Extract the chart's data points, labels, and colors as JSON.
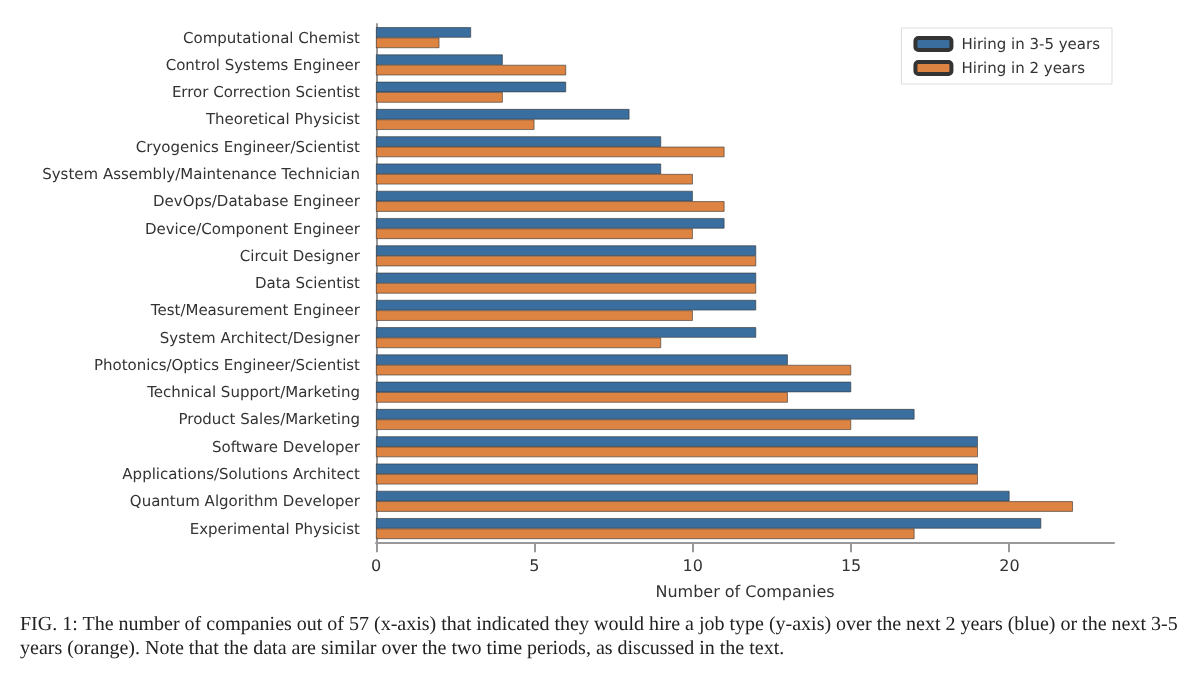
{
  "chart_data": {
    "type": "bar",
    "orientation": "horizontal",
    "xlabel": "Number of Companies",
    "categories": [
      "Computational Chemist",
      "Control Systems Engineer",
      "Error Correction Scientist",
      "Theoretical Physicist",
      "Cryogenics Engineer/Scientist",
      "System Assembly/Maintenance Technician",
      "DevOps/Database Engineer",
      "Device/Component Engineer",
      "Circuit Designer",
      "Data Scientist",
      "Test/Measurement Engineer",
      "System Architect/Designer",
      "Photonics/Optics Engineer/Scientist",
      "Technical Support/Marketing",
      "Product Sales/Marketing",
      "Software Developer",
      "Applications/Solutions Architect",
      "Quantum Algorithm Developer",
      "Experimental Physicist"
    ],
    "series": [
      {
        "name": "Hiring in 3-5 years",
        "color": "#3a6e9e",
        "values": [
          3,
          4,
          6,
          8,
          9,
          9,
          10,
          11,
          12,
          12,
          12,
          12,
          13,
          15,
          17,
          19,
          19,
          20,
          21
        ]
      },
      {
        "name": "Hiring in 2 years",
        "color": "#dd8443",
        "values": [
          2,
          6,
          4,
          5,
          11,
          10,
          11,
          10,
          12,
          12,
          10,
          9,
          15,
          13,
          15,
          19,
          19,
          22,
          17
        ]
      }
    ],
    "xlim": [
      0,
      23.3
    ],
    "xticks": [
      0,
      5,
      10,
      15,
      20
    ],
    "grid": false,
    "legend": "top right",
    "annotations": [
      "FIG. 1: The number of companies out of 57 (x-axis) that indicated they would hire a job type (y-axis) over the next 2 years (blue) or the next 3-5 years (orange). Note that the data are similar over the two time periods, as discussed in the text."
    ]
  }
}
